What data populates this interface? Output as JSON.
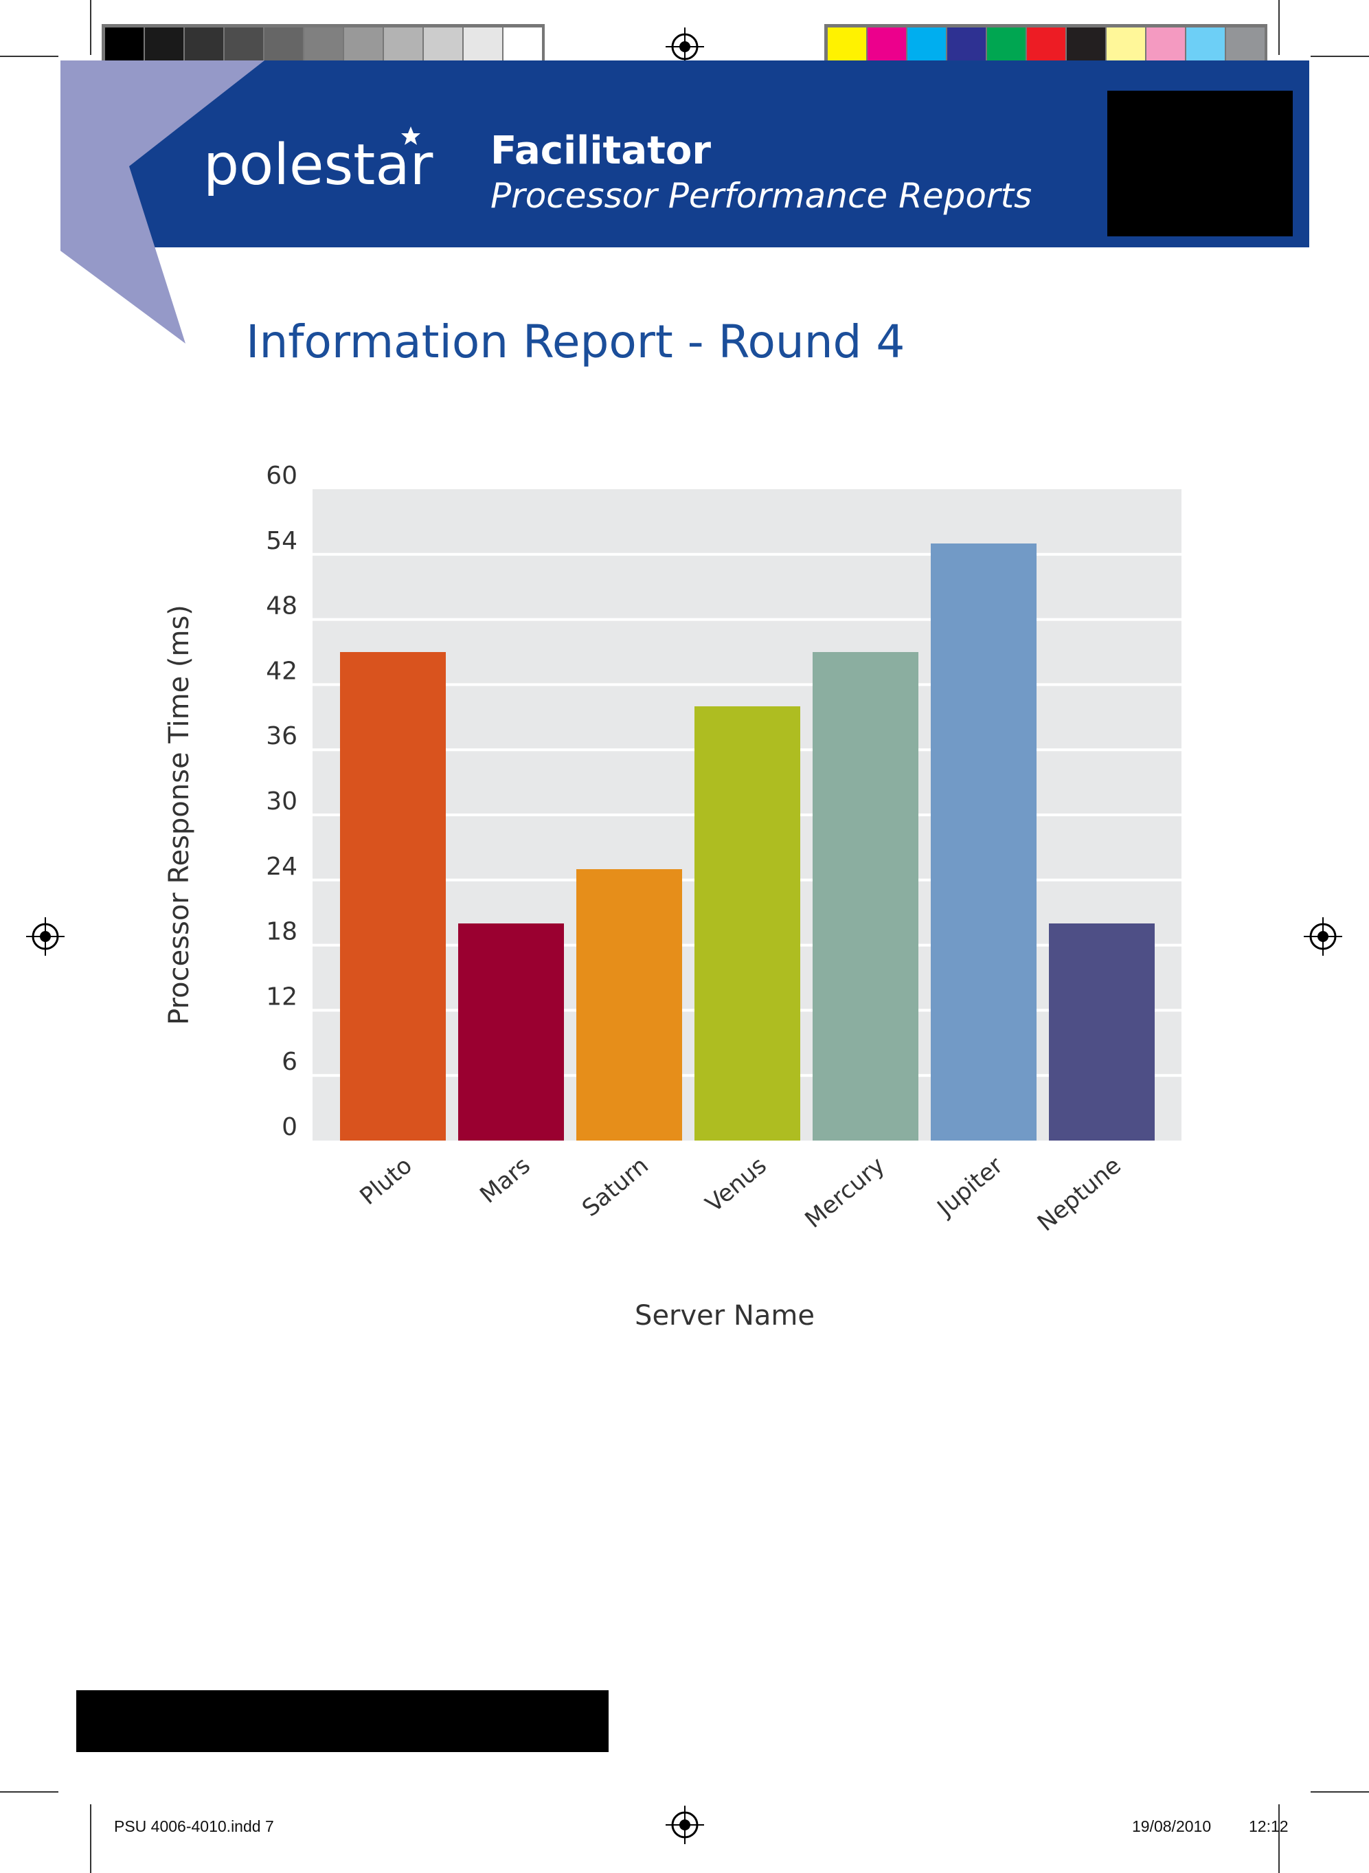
{
  "header": {
    "brand": "polestar",
    "title": "Facilitator",
    "subtitle": "Processor Performance Reports",
    "brand_color": "#133F8E",
    "wedge_color": "#9599C8"
  },
  "report": {
    "heading": "Information Report  - Round 4",
    "heading_color": "#1B4E9A"
  },
  "footer": {
    "file_slug": "PSU 4006-4010.indd   7",
    "date": "19/08/2010",
    "time": "12:12"
  },
  "print_marks": {
    "gray_swatches": [
      "#000000",
      "#1a1a1a",
      "#333333",
      "#4d4d4d",
      "#666666",
      "#808080",
      "#999999",
      "#b3b3b3",
      "#cccccc",
      "#e6e6e6",
      "#ffffff"
    ],
    "color_swatches": [
      "#FFF200",
      "#EC008C",
      "#00AEEF",
      "#2E3192",
      "#00A651",
      "#ED1C24",
      "#231F20",
      "#FFF799",
      "#F49AC1",
      "#6DCFF6",
      "#939598"
    ]
  },
  "chart_data": {
    "type": "bar",
    "categories": [
      "Pluto",
      "Mars",
      "Saturn",
      "Venus",
      "Mercury",
      "Jupiter",
      "Neptune"
    ],
    "values": [
      45,
      20,
      25,
      40,
      45,
      55,
      20
    ],
    "colors": [
      "#D9531E",
      "#9A0030",
      "#E68E1A",
      "#AEBD21",
      "#8BAEA0",
      "#729AC6",
      "#4E4F86"
    ],
    "ylim": [
      0,
      60
    ],
    "yticks": [
      0,
      6,
      12,
      18,
      24,
      30,
      36,
      42,
      48,
      54,
      60
    ],
    "xlabel": "Server Name",
    "ylabel": "Processor Response Time (ms)",
    "grid": true,
    "plot_background": "#E7E8E9"
  }
}
